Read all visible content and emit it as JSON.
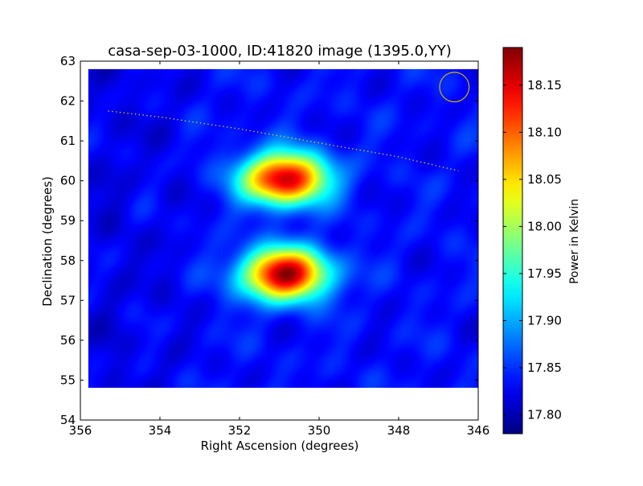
{
  "chart_data": {
    "type": "heatmap",
    "title": "casa-sep-03-1000, ID:41820 image (1395.0,YY)",
    "xlabel": "Right Ascension (degrees)",
    "ylabel": "Declination (degrees)",
    "xlim": [
      356,
      346
    ],
    "ylim": [
      54,
      63
    ],
    "xticks": [
      "356",
      "354",
      "352",
      "350",
      "348",
      "346"
    ],
    "yticks": [
      "54",
      "55",
      "56",
      "57",
      "58",
      "59",
      "60",
      "61",
      "62",
      "63"
    ],
    "image_extent": {
      "ra": [
        355.8,
        346.0
      ],
      "dec": [
        54.8,
        62.8
      ]
    },
    "colormap": "jet",
    "colorbar": {
      "label": "Power in Kelvin",
      "range": [
        17.78,
        18.19
      ],
      "ticks": [
        "17.80",
        "17.85",
        "17.90",
        "17.95",
        "18.00",
        "18.05",
        "18.10",
        "18.15"
      ]
    },
    "background_level": 17.835,
    "sources": [
      {
        "ra": 350.85,
        "dec": 60.05,
        "peak": 18.17,
        "sigma_ra": 0.75,
        "sigma_dec": 0.45
      },
      {
        "ra": 350.85,
        "dec": 57.65,
        "peak": 18.18,
        "sigma_ra": 0.75,
        "sigma_dec": 0.45
      }
    ],
    "horizon_trace": {
      "color": "#f0d800",
      "style": "dotted",
      "points": [
        [
          355.3,
          61.75
        ],
        [
          354,
          61.6
        ],
        [
          352,
          61.3
        ],
        [
          350,
          60.95
        ],
        [
          348,
          60.6
        ],
        [
          346.5,
          60.25
        ]
      ]
    },
    "beam_marker": {
      "ra": 346.6,
      "dec": 62.35,
      "radius_deg": 0.37,
      "color": "#c8b400"
    }
  }
}
